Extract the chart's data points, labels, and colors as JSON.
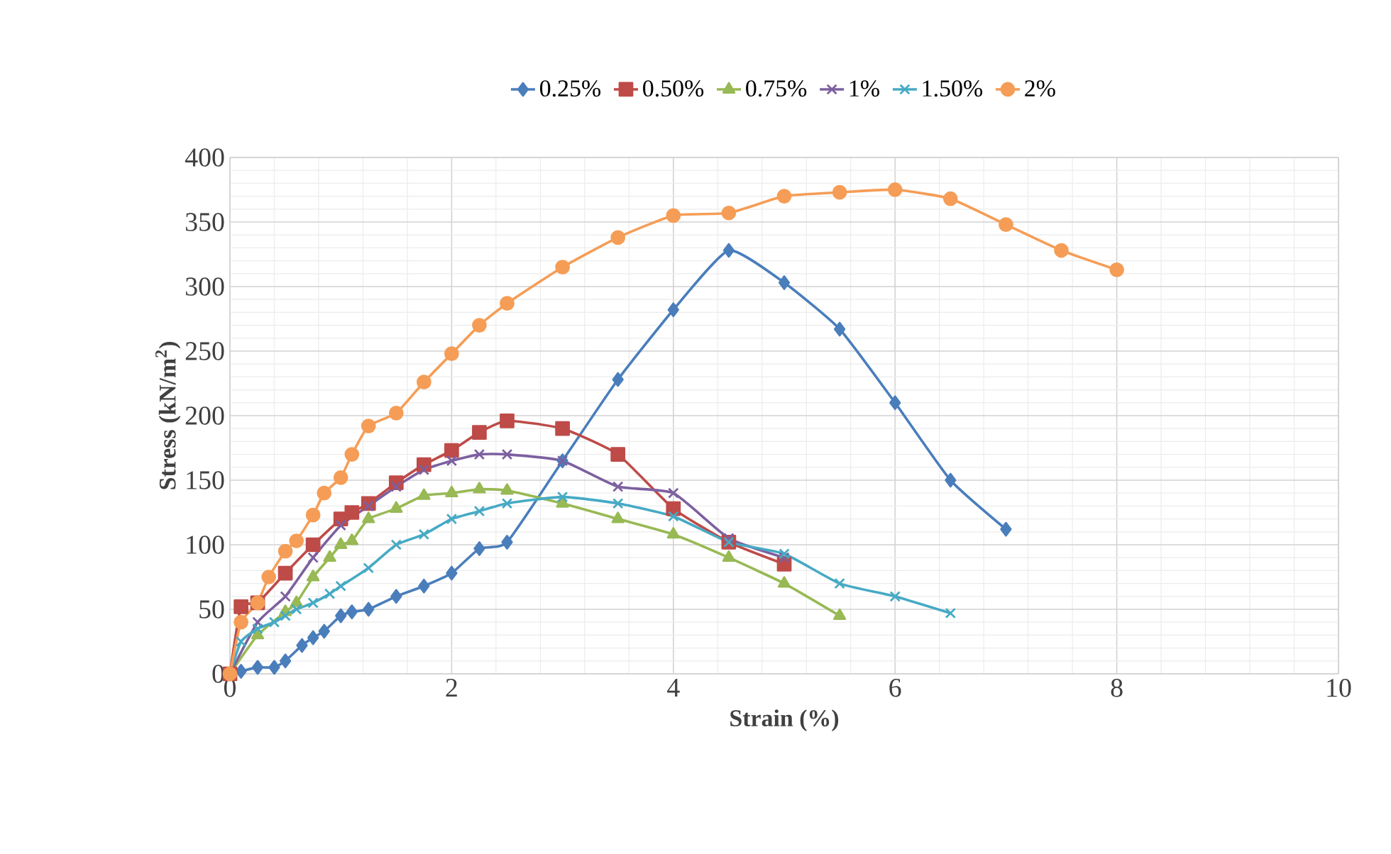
{
  "chart_data": {
    "type": "line",
    "xlabel": "Strain (%)",
    "ylabel": "Stress (kN/m$^{2}$)",
    "xlim": [
      0,
      10
    ],
    "xticks": [
      0,
      2,
      4,
      6,
      8,
      10
    ],
    "ylim": [
      0,
      400
    ],
    "yticks": [
      0,
      50,
      100,
      150,
      200,
      250,
      300,
      350,
      400
    ],
    "grid": true,
    "legend": "top",
    "line_style": "solid",
    "series": [
      {
        "name": "0.25%",
        "color": "#4a7ebb",
        "marker": "diamond",
        "x": [
          0,
          0.1,
          0.25,
          0.4,
          0.5,
          0.65,
          0.75,
          0.85,
          1,
          1.1,
          1.25,
          1.5,
          1.75,
          2,
          2.25,
          2.5,
          3,
          3.5,
          4,
          4.5,
          5,
          5.5,
          6,
          6.5,
          7
        ],
        "values": [
          0,
          2,
          5,
          5,
          10,
          22,
          28,
          33,
          45,
          48,
          50,
          60,
          68,
          78,
          97,
          102,
          165,
          228,
          282,
          328,
          303,
          267,
          210,
          150,
          112
        ]
      },
      {
        "name": "0.50%",
        "color": "#be4b48",
        "marker": "square",
        "x": [
          0,
          0.1,
          0.25,
          0.5,
          0.75,
          1,
          1.1,
          1.25,
          1.5,
          1.75,
          2,
          2.25,
          2.5,
          3,
          3.5,
          4,
          4.5,
          5
        ],
        "values": [
          0,
          52,
          55,
          78,
          100,
          120,
          125,
          132,
          148,
          162,
          173,
          187,
          196,
          190,
          170,
          128,
          102,
          85
        ]
      },
      {
        "name": "0.75%",
        "color": "#98b954",
        "marker": "triangle",
        "x": [
          0,
          0.25,
          0.5,
          0.6,
          0.75,
          0.9,
          1,
          1.1,
          1.25,
          1.5,
          1.75,
          2,
          2.25,
          2.5,
          3,
          3.5,
          4,
          4.5,
          5,
          5.5
        ],
        "values": [
          0,
          30,
          48,
          55,
          75,
          90,
          100,
          103,
          120,
          128,
          138,
          140,
          143,
          142,
          132,
          120,
          108,
          90,
          70,
          45
        ]
      },
      {
        "name": "1%",
        "color": "#7d60a0",
        "marker": "cross",
        "x": [
          0,
          0.25,
          0.5,
          0.75,
          1,
          1.25,
          1.5,
          1.75,
          2,
          2.25,
          2.5,
          3,
          3.5,
          4,
          4.5,
          5
        ],
        "values": [
          0,
          40,
          60,
          90,
          115,
          130,
          145,
          158,
          165,
          170,
          170,
          165,
          145,
          140,
          105,
          90
        ]
      },
      {
        "name": "1.50%",
        "color": "#46aac5",
        "marker": "cross",
        "x": [
          0,
          0.1,
          0.25,
          0.4,
          0.5,
          0.6,
          0.75,
          0.9,
          1,
          1.25,
          1.5,
          1.75,
          2,
          2.25,
          2.5,
          3,
          3.5,
          4,
          4.5,
          5,
          5.5,
          6,
          6.5
        ],
        "values": [
          0,
          25,
          35,
          40,
          45,
          50,
          55,
          62,
          68,
          82,
          100,
          108,
          120,
          126,
          132,
          137,
          132,
          122,
          102,
          93,
          70,
          60,
          47
        ]
      },
      {
        "name": "2%",
        "color": "#f59d56",
        "marker": "circle",
        "x": [
          0,
          0.1,
          0.25,
          0.35,
          0.5,
          0.6,
          0.75,
          0.85,
          1,
          1.1,
          1.25,
          1.5,
          1.75,
          2,
          2.25,
          2.5,
          3,
          3.5,
          4,
          4.5,
          5,
          5.5,
          6,
          6.5,
          7,
          7.5,
          8
        ],
        "values": [
          0,
          40,
          55,
          75,
          95,
          103,
          123,
          140,
          152,
          170,
          192,
          202,
          226,
          248,
          270,
          287,
          315,
          338,
          355,
          357,
          370,
          373,
          375,
          368,
          348,
          328,
          313
        ]
      }
    ]
  }
}
